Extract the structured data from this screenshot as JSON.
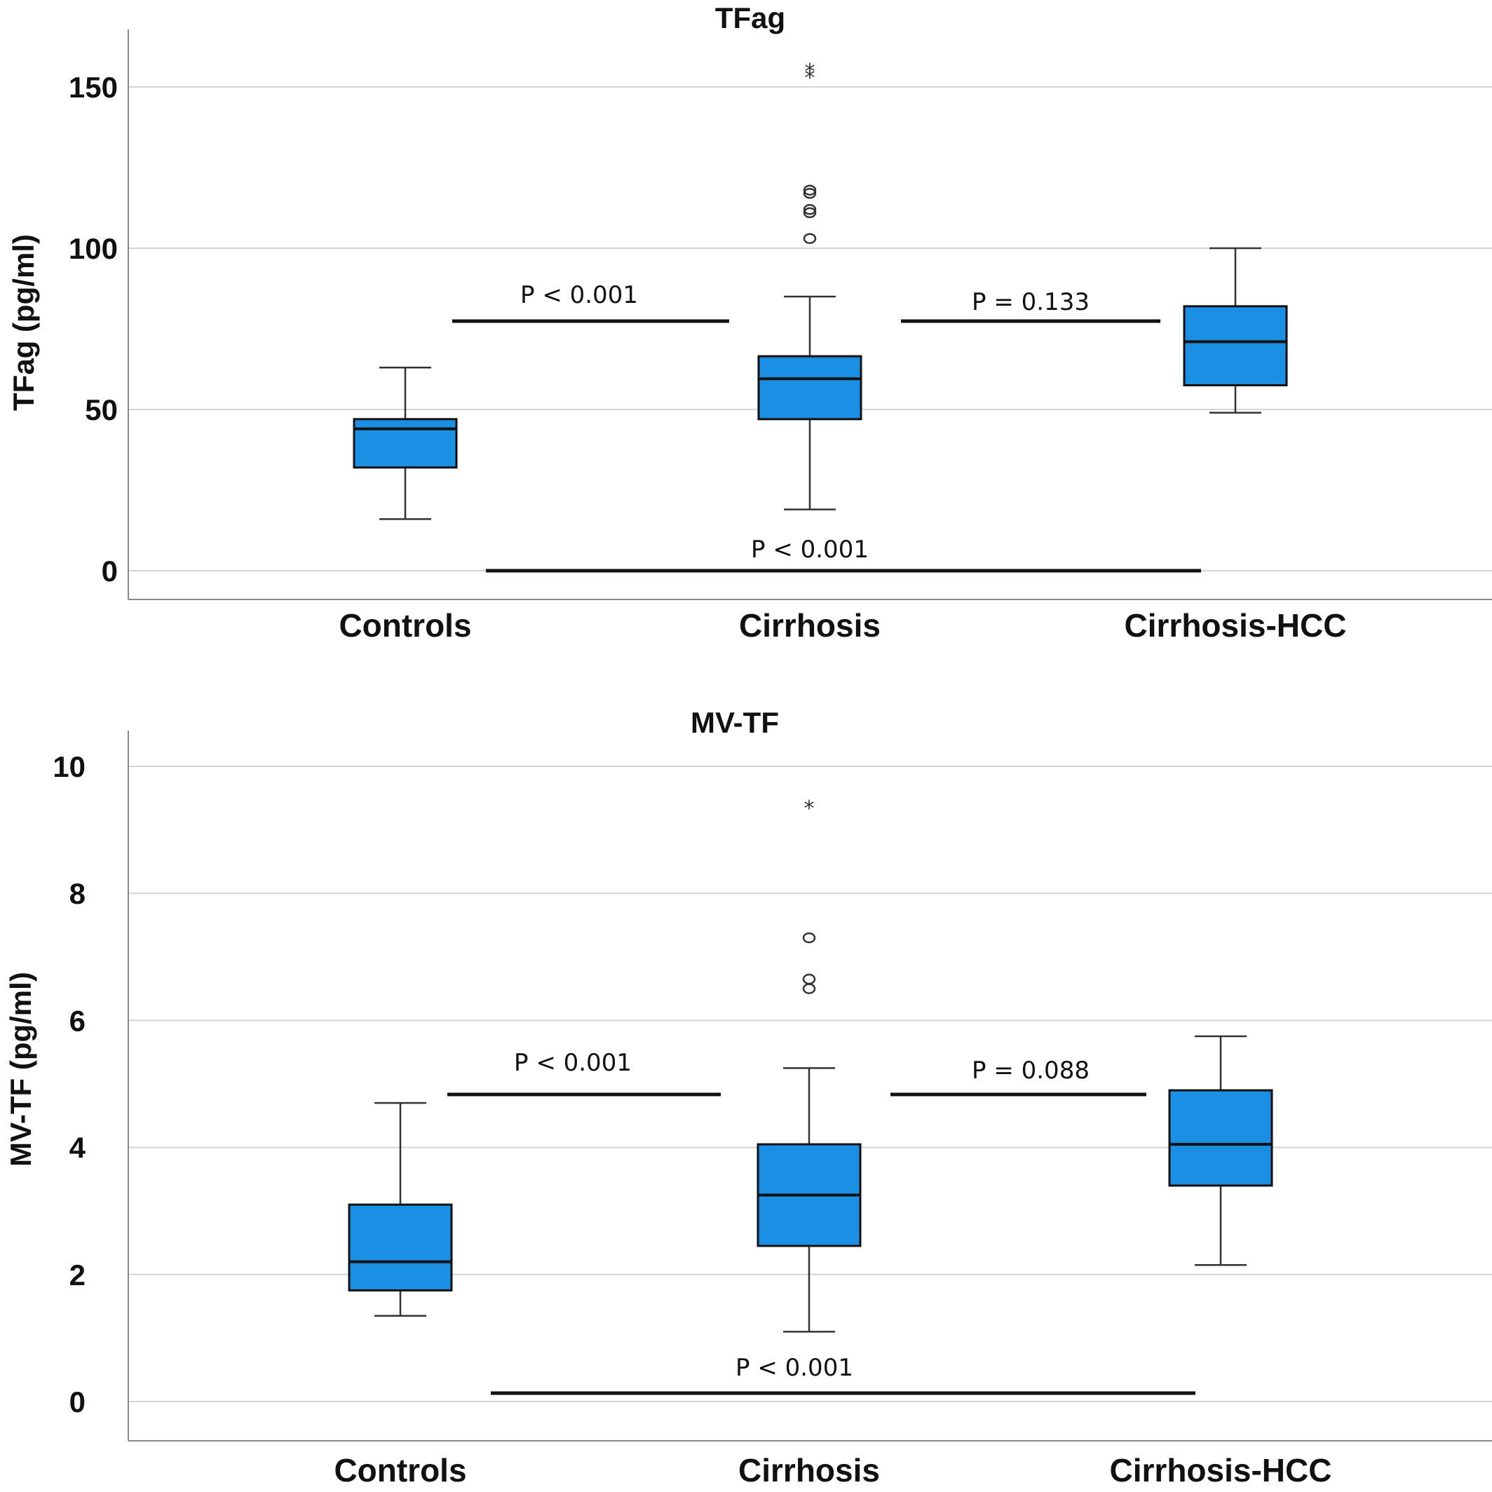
{
  "chart_data": [
    {
      "type": "box",
      "title": "TFag",
      "ylabel": "TFag (pg/ml)",
      "xlabel": "",
      "ylim": [
        -8,
        168
      ],
      "yticks": [
        0,
        50,
        100,
        150
      ],
      "grid": true,
      "categories": [
        "Controls",
        "Cirrhosis",
        "Cirrhosis-HCC"
      ],
      "boxes": [
        {
          "category": "Controls",
          "min": 16,
          "q1": 32,
          "median": 44,
          "q3": 47,
          "max": 63,
          "outliers": [],
          "extremes": []
        },
        {
          "category": "Cirrhosis",
          "min": 19,
          "q1": 47,
          "median": 59.5,
          "q3": 66.5,
          "max": 85,
          "outliers": [
            103,
            111,
            112,
            117,
            118
          ],
          "extremes": [
            153,
            155
          ]
        },
        {
          "category": "Cirrhosis-HCC",
          "min": 49,
          "q1": 57.5,
          "median": 71,
          "q3": 82,
          "max": 100,
          "outliers": [],
          "extremes": []
        }
      ],
      "comparisons": [
        {
          "from": "Controls",
          "to": "Cirrhosis",
          "label": "P < 0.001"
        },
        {
          "from": "Cirrhosis",
          "to": "Cirrhosis-HCC",
          "label": "P = 0.133"
        },
        {
          "from": "Controls",
          "to": "Cirrhosis-HCC",
          "label": "P < 0.001"
        }
      ]
    },
    {
      "type": "box",
      "title": "MV-TF",
      "ylabel": "MV-TF (pg/ml)",
      "xlabel": "",
      "ylim": [
        -0.5,
        10.6
      ],
      "yticks": [
        0,
        2,
        4,
        6,
        8,
        10
      ],
      "grid": true,
      "categories": [
        "Controls",
        "Cirrhosis",
        "Cirrhosis-HCC"
      ],
      "boxes": [
        {
          "category": "Controls",
          "min": 1.35,
          "q1": 1.75,
          "median": 2.2,
          "q3": 3.1,
          "max": 4.7,
          "outliers": [],
          "extremes": []
        },
        {
          "category": "Cirrhosis",
          "min": 1.1,
          "q1": 2.45,
          "median": 3.25,
          "q3": 4.05,
          "max": 5.25,
          "outliers": [
            6.5,
            6.65,
            7.3
          ],
          "extremes": [
            9.35
          ]
        },
        {
          "category": "Cirrhosis-HCC",
          "min": 2.15,
          "q1": 3.4,
          "median": 4.05,
          "q3": 4.9,
          "max": 5.75,
          "outliers": [],
          "extremes": []
        }
      ],
      "comparisons": [
        {
          "from": "Controls",
          "to": "Cirrhosis",
          "label": "P < 0.001"
        },
        {
          "from": "Cirrhosis",
          "to": "Cirrhosis-HCC",
          "label": "P = 0.088"
        },
        {
          "from": "Controls",
          "to": "Cirrhosis-HCC",
          "label": "P < 0.001"
        }
      ]
    }
  ]
}
